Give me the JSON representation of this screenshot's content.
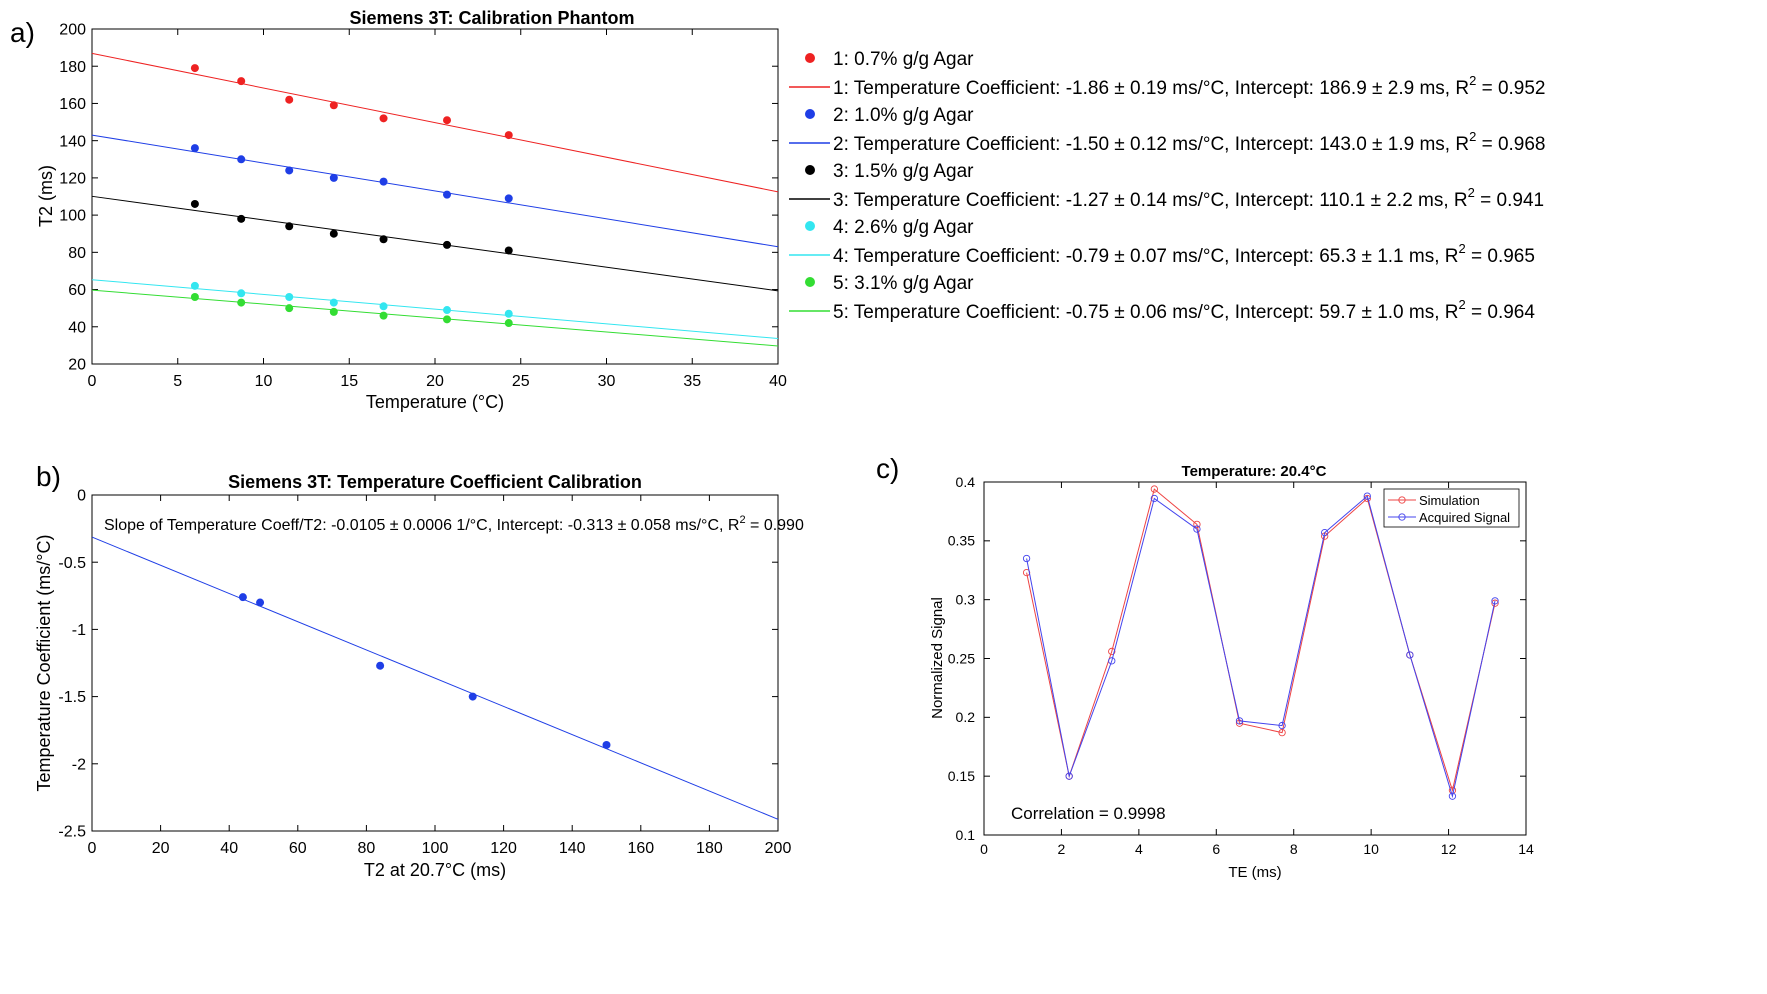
{
  "chart_data": [
    {
      "panel": "a)",
      "type": "scatter",
      "title": "Siemens 3T: Calibration Phantom",
      "xlabel": "Temperature (°C)",
      "ylabel": "T2 (ms)",
      "xlim": [
        0,
        40
      ],
      "ylim": [
        20,
        200
      ],
      "xticks": [
        0,
        5,
        10,
        15,
        20,
        25,
        30,
        35,
        40
      ],
      "yticks": [
        20,
        40,
        60,
        80,
        100,
        120,
        140,
        160,
        180,
        200
      ],
      "x": [
        6.0,
        8.7,
        11.5,
        14.1,
        17.0,
        20.7,
        24.3
      ],
      "series": [
        {
          "name": "1: 0.7% g/g Agar",
          "color": "#ee2222",
          "values": [
            179,
            172,
            162,
            159,
            152,
            151,
            143
          ],
          "fit_label": "1: Temperature Coefficient: -1.86 ± 0.19 ms/°C, Intercept: 186.9 ± 2.9 ms, R",
          "r2": " = 0.952",
          "slope": -1.86,
          "intercept": 186.9
        },
        {
          "name": "2: 1.0% g/g Agar",
          "color": "#1f3ee6",
          "values": [
            136,
            130,
            124,
            120,
            118,
            111,
            109
          ],
          "fit_label": "2: Temperature Coefficient: -1.50 ± 0.12 ms/°C, Intercept: 143.0 ± 1.9 ms, R",
          "r2": " = 0.968",
          "slope": -1.5,
          "intercept": 143.0
        },
        {
          "name": "3: 1.5% g/g Agar",
          "color": "#000000",
          "values": [
            106,
            98,
            94,
            90,
            87,
            84,
            81
          ],
          "fit_label": "3: Temperature Coefficient: -1.27 ± 0.14 ms/°C, Intercept: 110.1 ± 2.2 ms, R",
          "r2": " = 0.941",
          "slope": -1.27,
          "intercept": 110.1
        },
        {
          "name": "4: 2.6% g/g Agar",
          "color": "#33e6f0",
          "values": [
            62,
            58,
            56,
            53,
            51,
            49,
            47
          ],
          "fit_label": "4: Temperature Coefficient: -0.79 ± 0.07 ms/°C, Intercept: 65.3 ± 1.1 ms, R",
          "r2": " = 0.965",
          "slope": -0.79,
          "intercept": 65.3
        },
        {
          "name": "5: 3.1% g/g Agar",
          "color": "#33dd33",
          "values": [
            56,
            53,
            50,
            48,
            46,
            44,
            42
          ],
          "fit_label": "5: Temperature Coefficient: -0.75 ± 0.06 ms/°C, Intercept: 59.7 ± 1.0 ms, R",
          "r2": " = 0.964",
          "slope": -0.75,
          "intercept": 59.7
        }
      ]
    },
    {
      "panel": "b)",
      "type": "scatter",
      "title": "Siemens 3T: Temperature Coefficient Calibration",
      "xlabel": "T2 at 20.7°C (ms)",
      "ylabel": "Temperature Coefficient (ms/°C)",
      "xlim": [
        0,
        200
      ],
      "ylim": [
        -2.5,
        0
      ],
      "xticks": [
        0,
        20,
        40,
        60,
        80,
        100,
        120,
        140,
        160,
        180,
        200
      ],
      "yticks": [
        0,
        -0.5,
        -1,
        -1.5,
        -2,
        -2.5
      ],
      "ytick_labels": [
        "0",
        "-0.5",
        "-1",
        "-1.5",
        "-2",
        "-2.5"
      ],
      "annotation": "Slope of Temperature Coeff/T2: -0.0105 ± 0.0006 1/°C, Intercept: -0.313 ± 0.058 ms/°C, R",
      "annotation_r2": " = 0.990",
      "color": "#1f3ee6",
      "points": [
        [
          44,
          -0.76
        ],
        [
          49,
          -0.8
        ],
        [
          84,
          -1.27
        ],
        [
          111,
          -1.5
        ],
        [
          150,
          -1.86
        ]
      ],
      "slope": -0.0105,
      "intercept": -0.313
    },
    {
      "panel": "c)",
      "type": "line",
      "title": "Temperature: 20.4°C",
      "xlabel": "TE (ms)",
      "ylabel": "Normalized Signal",
      "xlim": [
        0,
        14
      ],
      "ylim": [
        0.1,
        0.4
      ],
      "xticks": [
        0,
        2,
        4,
        6,
        8,
        10,
        12,
        14
      ],
      "yticks": [
        0.1,
        0.15,
        0.2,
        0.25,
        0.3,
        0.35,
        0.4
      ],
      "ytick_labels": [
        "0.1",
        "0.15",
        "0.2",
        "0.25",
        "0.3",
        "0.35",
        "0.4"
      ],
      "x": [
        1.1,
        2.2,
        3.3,
        4.4,
        5.5,
        6.6,
        7.7,
        8.8,
        9.9,
        11.0,
        12.1,
        13.2
      ],
      "series": [
        {
          "name": "Simulation",
          "color": "#ee4444",
          "values": [
            0.323,
            0.15,
            0.256,
            0.394,
            0.364,
            0.195,
            0.187,
            0.354,
            0.386,
            0.253,
            0.138,
            0.297
          ]
        },
        {
          "name": "Acquired Signal",
          "color": "#4444ee",
          "values": [
            0.335,
            0.15,
            0.248,
            0.386,
            0.36,
            0.197,
            0.193,
            0.357,
            0.388,
            0.253,
            0.133,
            0.299
          ]
        }
      ],
      "annotation": "Correlation = 0.9998"
    }
  ],
  "r_sup": "2"
}
